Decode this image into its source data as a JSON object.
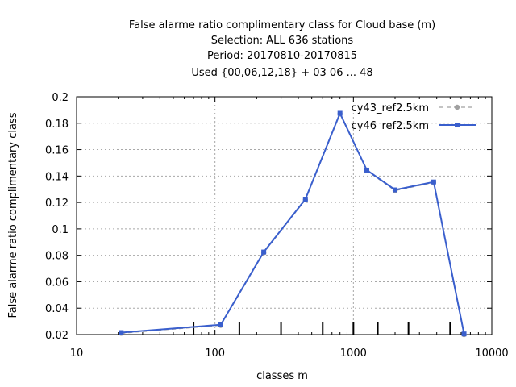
{
  "chart_data": {
    "type": "line",
    "title_lines": [
      "False alarme ratio complimentary class  for Cloud base (m)",
      "Selection: ALL    636 stations",
      "Period: 20170810-20170815",
      "Used {00,06,12,18} + 03 06 ... 48"
    ],
    "xlabel": "classes m",
    "ylabel": "False alarme ratio complimentary class",
    "xscale": "log",
    "xlim": [
      10,
      10000
    ],
    "ylim": [
      0.02,
      0.2
    ],
    "x_ticks": [
      10,
      100,
      1000,
      10000
    ],
    "x_tick_labels": [
      "10",
      "100",
      "1000",
      "10000"
    ],
    "y_ticks": [
      0.02,
      0.04,
      0.06,
      0.08,
      0.1,
      0.12,
      0.14,
      0.16,
      0.18,
      0.2
    ],
    "y_tick_labels": [
      "0.02",
      "0.04",
      "0.06",
      "0.08",
      "0.1",
      "0.12",
      "0.14",
      "0.16",
      "0.18",
      "0.2"
    ],
    "grid": true,
    "legend_position": "top-right",
    "class_boundaries": [
      70,
      150,
      300,
      600,
      1000,
      1500,
      2500,
      5000
    ],
    "series": [
      {
        "name": "cy43_ref2.5km",
        "color": "#a0a0a0",
        "style": "dashed",
        "x": [
          21,
          110,
          225,
          450,
          800,
          1250,
          2000,
          3800,
          6300
        ],
        "y": [
          0.021,
          0.027,
          0.082,
          0.122,
          0.187,
          0.144,
          0.129,
          0.135,
          0.02
        ]
      },
      {
        "name": "cy46_ref2.5km",
        "color": "#3a5fcd",
        "style": "solid",
        "x": [
          21,
          110,
          225,
          450,
          800,
          1250,
          2000,
          3800,
          6300
        ],
        "y": [
          0.0215,
          0.0275,
          0.0825,
          0.1225,
          0.1875,
          0.1445,
          0.1295,
          0.1355,
          0.0205
        ]
      }
    ]
  }
}
